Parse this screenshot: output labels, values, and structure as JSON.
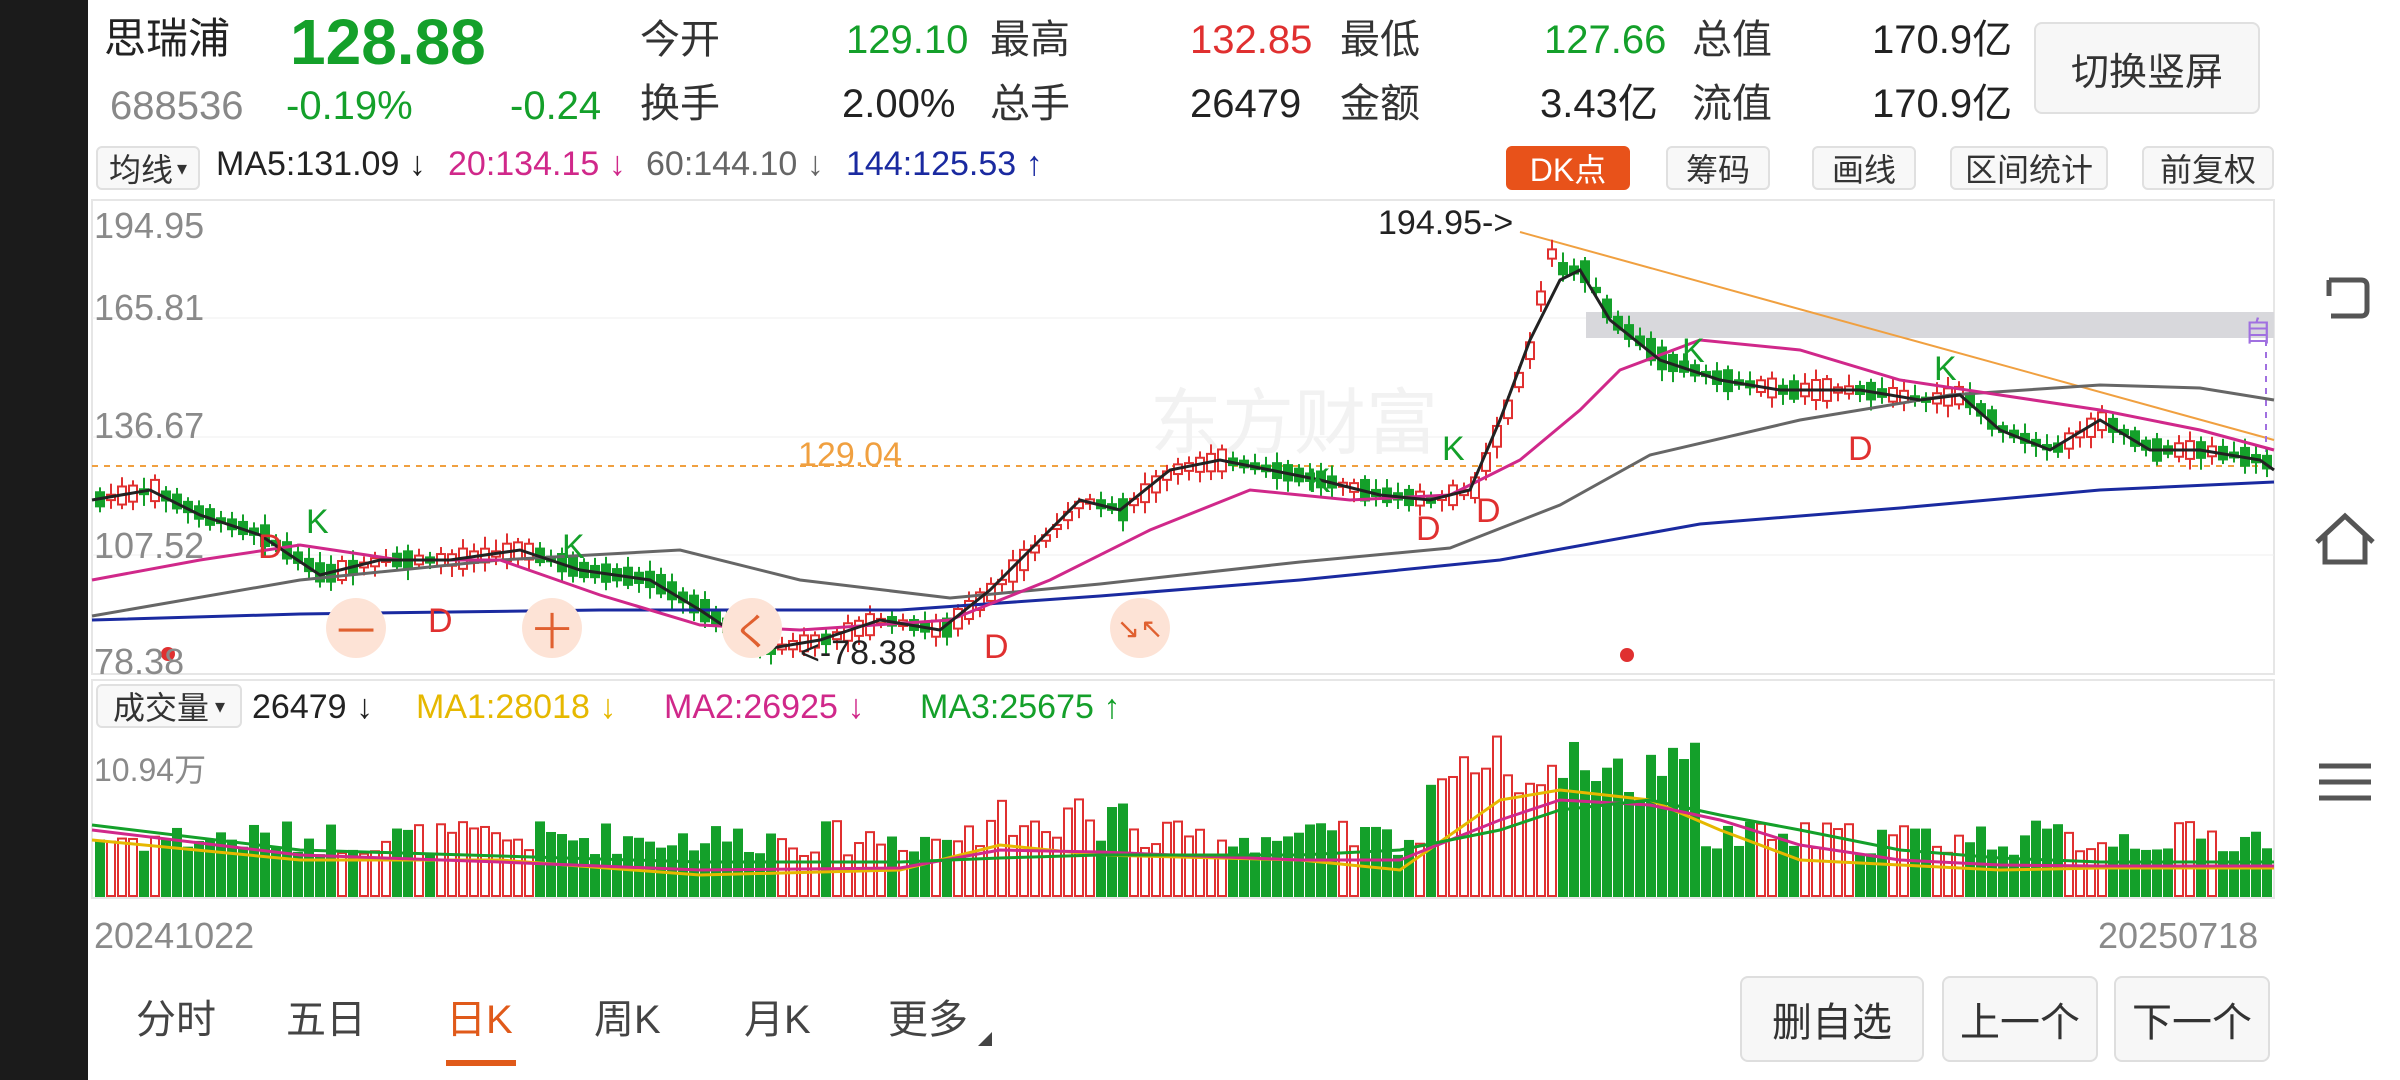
{
  "quote": {
    "name": "思瑞浦",
    "code": "688536",
    "price": "128.88",
    "change_pct": "-0.19%",
    "change": "-0.24",
    "labels": {
      "open": "今开",
      "high": "最高",
      "low": "最低",
      "cap": "总值",
      "turnover": "换手",
      "volume": "总手",
      "amount": "金额",
      "float": "流值"
    },
    "open": "129.10",
    "high": "132.85",
    "low": "127.66",
    "cap": "170.9亿",
    "turnover": "2.00%",
    "volume": "26479",
    "amount": "3.43亿",
    "float": "170.9亿",
    "switch_label": "切换竖屏"
  },
  "toolbar": {
    "ma_select": "均线",
    "ma5": "MA5:131.09 ↓",
    "ma20": "20:134.15 ↓",
    "ma60": "60:144.10 ↓",
    "ma144": "144:125.53 ↑",
    "dk": "DK点",
    "chips": "筹码",
    "draw": "画线",
    "range": "区间统计",
    "adjust": "前复权"
  },
  "price_axis": [
    "194.95",
    "165.81",
    "136.67",
    "107.52",
    "78.38"
  ],
  "annotations": {
    "high_mark": "194.95->",
    "low_mark": "<-78.38",
    "ref_price": "129.04",
    "self_tag": "自",
    "k": "K",
    "d": "D",
    "c1": "一",
    "c2": "十",
    "c3": "く",
    "c4": "↘↖"
  },
  "volume": {
    "select": "成交量",
    "value": "26479 ↓",
    "ma1": "MA1:28018 ↓",
    "ma2": "MA2:26925 ↓",
    "ma3": "MA3:25675 ↑",
    "axis_max": "10.94万"
  },
  "dates": {
    "start": "20241022",
    "end": "20250718"
  },
  "watermark": "东方财富",
  "tabs": [
    "分时",
    "五日",
    "日K",
    "周K",
    "月K",
    "更多"
  ],
  "actions": {
    "remove": "删自选",
    "prev": "上一个",
    "next": "下一个"
  },
  "colors": {
    "up": "#e03030",
    "down": "#14a02a",
    "ma5": "#222222",
    "ma20": "#d0288a",
    "ma60": "#666666",
    "ma144": "#1a2aa0",
    "accent": "#e05a1a"
  },
  "chart_data": {
    "type": "candlestick",
    "ylim": [
      78.38,
      194.95
    ],
    "highest": 194.95,
    "lowest": 78.38,
    "reference_line": 129.04,
    "last_close": 128.88
  }
}
